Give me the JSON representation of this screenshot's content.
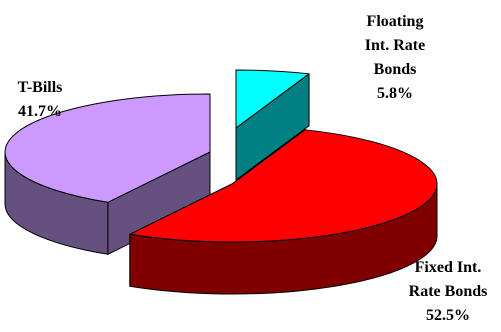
{
  "chart_data": {
    "type": "pie",
    "style": "3d-exploded",
    "legend": "none",
    "slices": [
      {
        "name": "Floating Int. Rate Bonds",
        "value": 5.8,
        "label_lines": [
          "Floating",
          "Int. Rate",
          "Bonds"
        ],
        "pct_label": "5.8%",
        "color": "#00ffff",
        "side_color": "#008080"
      },
      {
        "name": "Fixed Int. Rate Bonds",
        "value": 52.5,
        "label_lines": [
          "Fixed Int.",
          "Rate Bonds"
        ],
        "pct_label": "52.5%",
        "color": "#ff0000",
        "side_color": "#800000"
      },
      {
        "name": "T-Bills",
        "value": 41.7,
        "label_lines": [
          "T-Bills"
        ],
        "pct_label": "41.7%",
        "color": "#cc99ff",
        "side_color": "#665080"
      }
    ]
  }
}
